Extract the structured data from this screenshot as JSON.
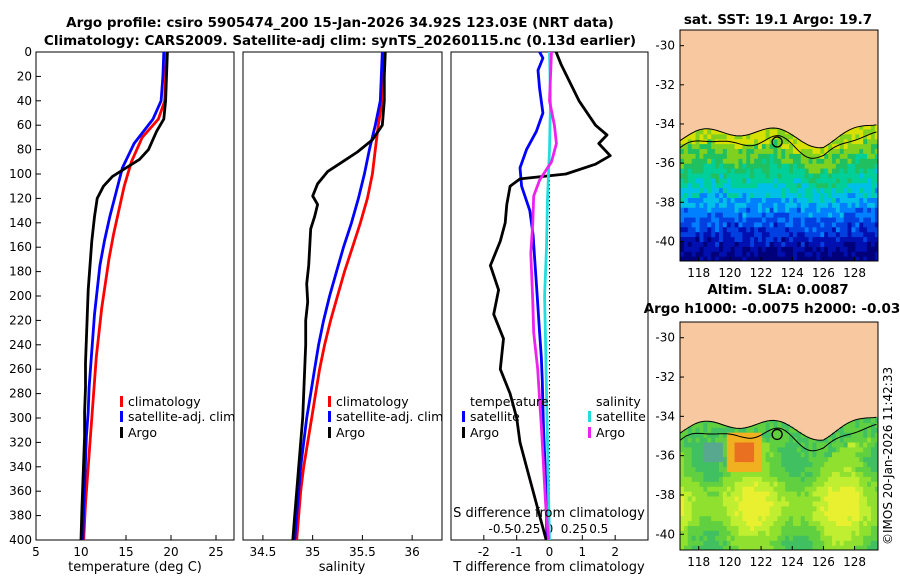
{
  "figure": {
    "title_line1": "Argo profile: csiro 5905474_200 15-Jan-2026 34.92S 123.03E (NRT data)",
    "title_line2": "Climatology: CARS2009. Satellite-adj clim: synTS_20260115.nc (0.13d earlier)",
    "watermark": "©IMOS 20-Jan-2026 11:42:33"
  },
  "colors": {
    "climatology": "#ff0000",
    "satellite": "#0000ff",
    "argo": "#000000",
    "sat_salinity": "#22dddd",
    "argo_salinity": "#ee22ee",
    "land": "#f8c9a0"
  },
  "chart_data": [
    {
      "type": "line",
      "id": "temperature",
      "xlabel": "temperature (deg C)",
      "ylim": [
        400,
        0
      ],
      "xlim": [
        5,
        27
      ],
      "xticks": [
        5,
        10,
        15,
        20,
        25
      ],
      "yticks": [
        0,
        20,
        40,
        60,
        80,
        100,
        120,
        140,
        160,
        180,
        200,
        220,
        240,
        260,
        280,
        300,
        320,
        340,
        360,
        380,
        400
      ],
      "legend": [
        "climatology",
        "satellite-adj. clim",
        "Argo"
      ],
      "series": [
        {
          "name": "climatology",
          "color": "#ff0000",
          "points": [
            [
              19.5,
              0
            ],
            [
              19.4,
              20
            ],
            [
              19.3,
              40
            ],
            [
              18.6,
              55
            ],
            [
              16.8,
              70
            ],
            [
              15.6,
              90
            ],
            [
              14.8,
              110
            ],
            [
              14.2,
              130
            ],
            [
              13.6,
              150
            ],
            [
              13.1,
              170
            ],
            [
              12.7,
              190
            ],
            [
              12.3,
              210
            ],
            [
              12.0,
              230
            ],
            [
              11.7,
              250
            ],
            [
              11.5,
              270
            ],
            [
              11.3,
              290
            ],
            [
              11.1,
              310
            ],
            [
              10.9,
              330
            ],
            [
              10.7,
              350
            ],
            [
              10.5,
              370
            ],
            [
              10.3,
              400
            ]
          ]
        },
        {
          "name": "satellite-adj. clim",
          "color": "#0000ff",
          "points": [
            [
              19.2,
              0
            ],
            [
              19.1,
              20
            ],
            [
              18.9,
              40
            ],
            [
              18.0,
              55
            ],
            [
              15.9,
              75
            ],
            [
              14.6,
              95
            ],
            [
              13.9,
              115
            ],
            [
              13.2,
              135
            ],
            [
              12.6,
              155
            ],
            [
              12.1,
              175
            ],
            [
              11.8,
              195
            ],
            [
              11.5,
              215
            ],
            [
              11.3,
              235
            ],
            [
              11.1,
              255
            ],
            [
              10.9,
              275
            ],
            [
              10.8,
              295
            ],
            [
              10.6,
              315
            ],
            [
              10.5,
              335
            ],
            [
              10.4,
              355
            ],
            [
              10.3,
              375
            ],
            [
              10.2,
              400
            ]
          ]
        },
        {
          "name": "Argo",
          "color": "#000000",
          "points": [
            [
              19.6,
              0
            ],
            [
              19.5,
              20
            ],
            [
              19.4,
              40
            ],
            [
              19.2,
              55
            ],
            [
              18.4,
              65
            ],
            [
              17.5,
              80
            ],
            [
              16.5,
              88
            ],
            [
              15.0,
              95
            ],
            [
              13.5,
              102
            ],
            [
              12.5,
              110
            ],
            [
              11.8,
              120
            ],
            [
              11.5,
              135
            ],
            [
              11.2,
              155
            ],
            [
              11.0,
              175
            ],
            [
              10.8,
              195
            ],
            [
              10.7,
              215
            ],
            [
              10.6,
              235
            ],
            [
              10.5,
              255
            ],
            [
              10.5,
              275
            ],
            [
              10.4,
              295
            ],
            [
              10.4,
              315
            ],
            [
              10.3,
              335
            ],
            [
              10.2,
              355
            ],
            [
              10.1,
              375
            ],
            [
              10.0,
              400
            ]
          ]
        }
      ]
    },
    {
      "type": "line",
      "id": "salinity",
      "xlabel": "salinity",
      "ylim": [
        400,
        0
      ],
      "xlim": [
        34.3,
        36.3
      ],
      "xticks": [
        34.5,
        35,
        35.5,
        36
      ],
      "xtick_labels": [
        "34.5",
        "35",
        "35.5",
        "36"
      ],
      "legend": [
        "climatology",
        "satellite-adj. clim",
        "Argo"
      ],
      "series": [
        {
          "name": "climatology",
          "color": "#ff0000",
          "points": [
            [
              35.72,
              0
            ],
            [
              35.71,
              20
            ],
            [
              35.7,
              40
            ],
            [
              35.66,
              60
            ],
            [
              35.63,
              80
            ],
            [
              35.6,
              100
            ],
            [
              35.55,
              120
            ],
            [
              35.48,
              140
            ],
            [
              35.4,
              160
            ],
            [
              35.32,
              180
            ],
            [
              35.25,
              200
            ],
            [
              35.18,
              220
            ],
            [
              35.12,
              240
            ],
            [
              35.07,
              260
            ],
            [
              35.03,
              280
            ],
            [
              34.99,
              300
            ],
            [
              34.95,
              320
            ],
            [
              34.91,
              340
            ],
            [
              34.88,
              360
            ],
            [
              34.86,
              380
            ],
            [
              34.84,
              400
            ]
          ]
        },
        {
          "name": "satellite-adj. clim",
          "color": "#0000ff",
          "points": [
            [
              35.7,
              0
            ],
            [
              35.69,
              20
            ],
            [
              35.68,
              40
            ],
            [
              35.63,
              60
            ],
            [
              35.57,
              80
            ],
            [
              35.52,
              100
            ],
            [
              35.46,
              120
            ],
            [
              35.39,
              140
            ],
            [
              35.31,
              160
            ],
            [
              35.24,
              180
            ],
            [
              35.17,
              200
            ],
            [
              35.11,
              220
            ],
            [
              35.06,
              240
            ],
            [
              35.02,
              260
            ],
            [
              34.98,
              280
            ],
            [
              34.94,
              300
            ],
            [
              34.91,
              320
            ],
            [
              34.88,
              340
            ],
            [
              34.86,
              360
            ],
            [
              34.84,
              380
            ],
            [
              34.82,
              400
            ]
          ]
        },
        {
          "name": "Argo",
          "color": "#000000",
          "points": [
            [
              35.73,
              0
            ],
            [
              35.72,
              20
            ],
            [
              35.72,
              40
            ],
            [
              35.7,
              60
            ],
            [
              35.6,
              72
            ],
            [
              35.45,
              82
            ],
            [
              35.3,
              90
            ],
            [
              35.15,
              98
            ],
            [
              35.05,
              108
            ],
            [
              35.0,
              118
            ],
            [
              35.05,
              125
            ],
            [
              35.02,
              135
            ],
            [
              34.98,
              145
            ],
            [
              34.97,
              160
            ],
            [
              34.96,
              175
            ],
            [
              34.94,
              190
            ],
            [
              34.95,
              205
            ],
            [
              34.93,
              220
            ],
            [
              34.93,
              240
            ],
            [
              34.92,
              260
            ],
            [
              34.91,
              280
            ],
            [
              34.9,
              300
            ],
            [
              34.88,
              320
            ],
            [
              34.86,
              340
            ],
            [
              34.84,
              360
            ],
            [
              34.82,
              380
            ],
            [
              34.8,
              400
            ]
          ]
        }
      ]
    },
    {
      "type": "line",
      "id": "differences",
      "xlabel": "T difference from climatology",
      "top_axis_label": "S difference from climatology",
      "ylim": [
        400,
        0
      ],
      "xlim": [
        -3,
        3
      ],
      "xticks": [
        -2,
        -1,
        0,
        1,
        2
      ],
      "xtick_labels": [
        "-2",
        "-1",
        "0",
        "1",
        "2"
      ],
      "s_xlim": [
        -1.0,
        1.0
      ],
      "s_xticks": [
        -0.5,
        -0.25,
        0,
        0.25,
        0.5
      ],
      "s_xtick_labels": [
        "-0.5",
        "-0.25",
        "0",
        "0.25",
        "0.5"
      ],
      "legend_temperature_title": "temperature",
      "legend_salinity_title": "salinity",
      "legend_temperature": [
        "satellite",
        "Argo"
      ],
      "legend_salinity": [
        "satellite",
        "Argo"
      ],
      "series": [
        {
          "name": "T satellite",
          "color": "#0000ff",
          "axis": "T",
          "points": [
            [
              -0.3,
              0
            ],
            [
              -0.2,
              5
            ],
            [
              -0.35,
              15
            ],
            [
              -0.3,
              30
            ],
            [
              -0.2,
              50
            ],
            [
              -0.4,
              65
            ],
            [
              -0.7,
              80
            ],
            [
              -0.9,
              95
            ],
            [
              -0.85,
              110
            ],
            [
              -0.6,
              130
            ],
            [
              -0.5,
              150
            ],
            [
              -0.45,
              170
            ],
            [
              -0.4,
              190
            ],
            [
              -0.35,
              210
            ],
            [
              -0.3,
              230
            ],
            [
              -0.25,
              250
            ],
            [
              -0.22,
              270
            ],
            [
              -0.2,
              290
            ],
            [
              -0.18,
              310
            ],
            [
              -0.15,
              330
            ],
            [
              -0.12,
              350
            ],
            [
              -0.1,
              370
            ],
            [
              -0.08,
              400
            ]
          ]
        },
        {
          "name": "T Argo",
          "color": "#000000",
          "axis": "T",
          "points": [
            [
              0.2,
              0
            ],
            [
              0.35,
              10
            ],
            [
              0.9,
              40
            ],
            [
              1.4,
              60
            ],
            [
              1.75,
              68
            ],
            [
              1.5,
              75
            ],
            [
              1.85,
              85
            ],
            [
              1.4,
              92
            ],
            [
              0.5,
              100
            ],
            [
              -0.9,
              104
            ],
            [
              -1.2,
              110
            ],
            [
              -1.3,
              125
            ],
            [
              -1.35,
              140
            ],
            [
              -1.5,
              155
            ],
            [
              -1.8,
              175
            ],
            [
              -1.55,
              195
            ],
            [
              -1.7,
              215
            ],
            [
              -1.4,
              235
            ],
            [
              -1.5,
              260
            ],
            [
              -1.2,
              280
            ],
            [
              -1.0,
              300
            ],
            [
              -0.9,
              320
            ],
            [
              -0.7,
              340
            ],
            [
              -0.5,
              360
            ],
            [
              -0.3,
              380
            ],
            [
              -0.1,
              400
            ]
          ]
        },
        {
          "name": "S satellite",
          "color": "#22dddd",
          "axis": "S",
          "points": [
            [
              0.0,
              0
            ],
            [
              0.01,
              40
            ],
            [
              0.0,
              80
            ],
            [
              -0.02,
              120
            ],
            [
              -0.03,
              160
            ],
            [
              -0.05,
              200
            ],
            [
              -0.04,
              240
            ],
            [
              -0.03,
              280
            ],
            [
              -0.02,
              320
            ],
            [
              -0.01,
              360
            ],
            [
              0.0,
              400
            ]
          ]
        },
        {
          "name": "S Argo",
          "color": "#ee22ee",
          "axis": "S",
          "points": [
            [
              0.02,
              0
            ],
            [
              0.0,
              40
            ],
            [
              0.05,
              60
            ],
            [
              0.07,
              75
            ],
            [
              0.02,
              90
            ],
            [
              -0.1,
              105
            ],
            [
              -0.16,
              118
            ],
            [
              -0.17,
              140
            ],
            [
              -0.19,
              165
            ],
            [
              -0.18,
              185
            ],
            [
              -0.17,
              205
            ],
            [
              -0.16,
              230
            ],
            [
              -0.12,
              260
            ],
            [
              -0.1,
              285
            ],
            [
              -0.08,
              310
            ],
            [
              -0.06,
              340
            ],
            [
              -0.04,
              370
            ],
            [
              -0.01,
              400
            ]
          ]
        }
      ]
    },
    {
      "type": "heatmap",
      "id": "sst_map",
      "title": "sat. SST: 19.1 Argo: 19.7",
      "xticks": [
        118,
        120,
        122,
        124,
        126,
        128
      ],
      "yticks": [
        -30,
        -32,
        -34,
        -36,
        -38,
        -40
      ],
      "xlim": [
        116.8,
        129.5
      ],
      "ylim": [
        -41,
        -29.2
      ],
      "marker": [
        123.03,
        -34.92
      ]
    },
    {
      "type": "heatmap",
      "id": "sla_map",
      "title_line1": "Altim. SLA: 0.0087",
      "title_line2": "Argo h1000: -0.0075 h2000: -0.03",
      "xticks": [
        118,
        120,
        122,
        124,
        126,
        128
      ],
      "yticks": [
        -30,
        -32,
        -34,
        -36,
        -38,
        -40
      ],
      "xlim": [
        116.8,
        129.5
      ],
      "ylim": [
        -40.8,
        -29.2
      ],
      "marker": [
        123.03,
        -34.92
      ]
    }
  ]
}
